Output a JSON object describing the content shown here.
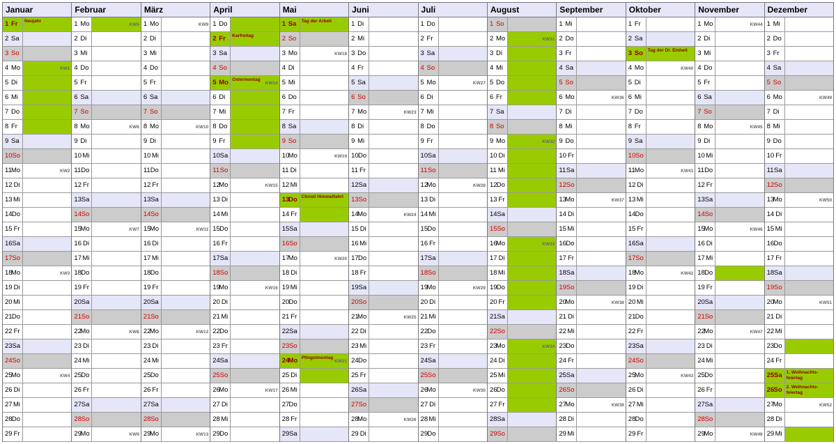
{
  "colors": {
    "header_bg": "#e6e6f9",
    "sat_num_bg": "#e6e6f9",
    "sat_body_bg": "#e6e6f9",
    "sun_num_bg": "#cccccc",
    "sun_body_bg": "#cccccc",
    "sun_text": "#d00000",
    "holiday_num_bg": "#99cc00",
    "holiday_body_bg": "#99cc00",
    "holiday_text": "#8b0000",
    "wk_even": "#99cc00",
    "wk_odd": "#ffffff",
    "hol_bold": true
  },
  "wd": [
    "Mo",
    "Di",
    "Mi",
    "Do",
    "Fr",
    "Sa",
    "So"
  ],
  "months": [
    {
      "name": "Januar",
      "start": 4,
      "ndays": 29,
      "hol": {
        "1": "Neujahr"
      },
      "kw": {
        "4": "KW1",
        "11": "KW2",
        "18": "KW3",
        "25": "KW4"
      }
    },
    {
      "name": "Februar",
      "start": 0,
      "ndays": 29,
      "hol": {},
      "kw": {
        "1": "KW5",
        "8": "KW6",
        "15": "KW7",
        "22": "KW8",
        "29": "KW9"
      }
    },
    {
      "name": "März",
      "start": 0,
      "ndays": 29,
      "hol": {},
      "kw": {
        "1": "KW9",
        "8": "KW10",
        "15": "KW11",
        "22": "KW12",
        "29": "KW13"
      }
    },
    {
      "name": "April",
      "start": 3,
      "ndays": 29,
      "hol": {
        "2": "Karfreitag",
        "5": "Ostermontag"
      },
      "kw": {
        "5": "KW14",
        "12": "KW15",
        "19": "KW16",
        "26": "KW17"
      }
    },
    {
      "name": "Mai",
      "start": 5,
      "ndays": 29,
      "hol": {
        "1": "Tag der Arbeit",
        "13": "Christi Himmelfahrt",
        "24": "Pfingstmontag"
      },
      "kw": {
        "3": "KW18",
        "10": "KW19",
        "17": "KW20",
        "24": "KW21"
      }
    },
    {
      "name": "Juni",
      "start": 1,
      "ndays": 29,
      "hol": {},
      "kw": {
        "7": "KW23",
        "14": "KW24",
        "21": "KW25",
        "28": "KW26"
      }
    },
    {
      "name": "Juli",
      "start": 3,
      "ndays": 29,
      "hol": {},
      "kw": {
        "5": "KW27",
        "12": "KW28",
        "19": "KW29",
        "26": "KW30"
      }
    },
    {
      "name": "August",
      "start": 6,
      "ndays": 29,
      "hol": {},
      "kw": {
        "2": "KW31",
        "9": "KW32",
        "16": "KW33",
        "23": "KW34"
      }
    },
    {
      "name": "September",
      "start": 2,
      "ndays": 29,
      "hol": {},
      "kw": {
        "6": "KW36",
        "13": "KW37",
        "20": "KW38",
        "27": "KW39"
      }
    },
    {
      "name": "Oktober",
      "start": 4,
      "ndays": 29,
      "hol": {
        "3": "Tag der Dt. Einheit"
      },
      "kw": {
        "4": "KW40",
        "11": "KW41",
        "18": "KW42",
        "25": "KW43"
      }
    },
    {
      "name": "November",
      "start": 0,
      "ndays": 29,
      "hol": {},
      "kw": {
        "1": "KW44",
        "8": "KW45",
        "15": "KW46",
        "22": "KW47",
        "29": "KW48"
      }
    },
    {
      "name": "Dezember",
      "start": 2,
      "ndays": 29,
      "hol": {
        "25": "1. Weihnachts-feiertag",
        "26": "2. Weihnachts-feiertag"
      },
      "kw": {
        "6": "KW49",
        "13": "KW50",
        "20": "KW51",
        "27": "KW52"
      }
    }
  ],
  "green_body_override": {
    "0": [
      4,
      5,
      6,
      7,
      8
    ],
    "1": [
      1
    ],
    "3": [
      1,
      6,
      7,
      8,
      9
    ],
    "4": [
      14,
      25
    ],
    "7": [
      2,
      3,
      4,
      5,
      6,
      9,
      10,
      11,
      12,
      13,
      16,
      17,
      18,
      19,
      20,
      23,
      24,
      25,
      26,
      27
    ],
    "10": [
      18
    ],
    "11": [
      23,
      29
    ]
  }
}
